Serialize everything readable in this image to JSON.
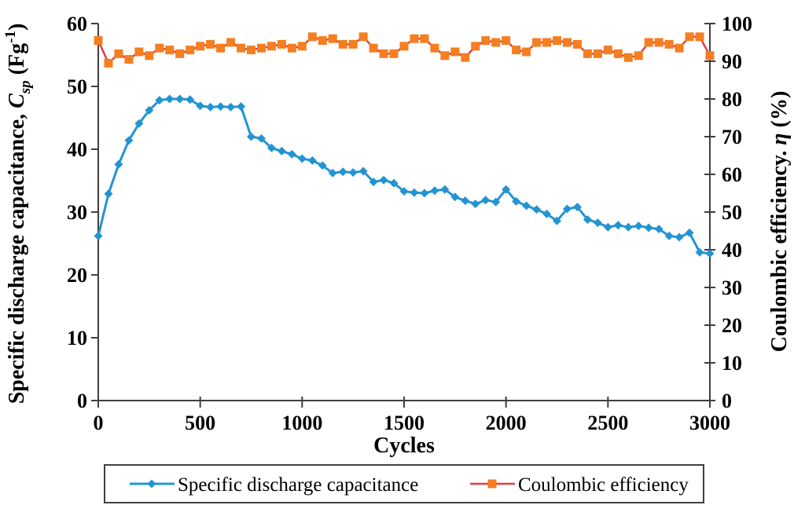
{
  "figure": {
    "background": "#ffffff",
    "axis_color": "#3f3f3f",
    "text_color": "#000000",
    "legend_border_color": "#3f3f3f"
  },
  "chart_data": {
    "type": "line",
    "title": "",
    "xlabel": "Cycles",
    "xlim": [
      0,
      3000
    ],
    "x_ticks": [
      0,
      500,
      1000,
      1500,
      2000,
      2500,
      3000
    ],
    "grid": false,
    "legend_position": "bottom-boxed",
    "left_axis": {
      "title_plain": "Specific discharge capacitance, Csp (Fg-1)",
      "title_parts": [
        {
          "t": "Specific discharge  capacitance,  "
        },
        {
          "t": "C",
          "style": "italic"
        },
        {
          "t": "sp",
          "style": "subitalic"
        },
        {
          "t": " (Fg",
          "style": "normal"
        },
        {
          "t": "-1",
          "style": "sup"
        },
        {
          "t": ")",
          "style": "normal"
        }
      ],
      "lim": [
        0,
        60
      ],
      "ticks": [
        0,
        10,
        20,
        30,
        40,
        50,
        60
      ]
    },
    "right_axis": {
      "title_plain": "Coulombic efficiency. η (%)",
      "title_parts": [
        {
          "t": "Coulombic  efficiency. "
        },
        {
          "t": "η",
          "style": "italic"
        },
        {
          "t": " (%)",
          "style": "normal"
        }
      ],
      "lim": [
        0,
        100
      ],
      "ticks": [
        0,
        10,
        20,
        30,
        40,
        50,
        60,
        70,
        80,
        90,
        100
      ]
    },
    "x": [
      0,
      50,
      100,
      150,
      200,
      250,
      300,
      350,
      400,
      450,
      500,
      550,
      600,
      650,
      700,
      750,
      800,
      850,
      900,
      950,
      1000,
      1050,
      1100,
      1150,
      1200,
      1250,
      1300,
      1350,
      1400,
      1450,
      1500,
      1550,
      1600,
      1650,
      1700,
      1750,
      1800,
      1850,
      1900,
      1950,
      2000,
      2050,
      2100,
      2150,
      2200,
      2250,
      2300,
      2350,
      2400,
      2450,
      2500,
      2550,
      2600,
      2650,
      2700,
      2750,
      2800,
      2850,
      2900,
      2950,
      3000
    ],
    "series": [
      {
        "name": "Specific discharge capacitance",
        "axis": "left",
        "marker": "diamond",
        "line_color": "#2394d2",
        "marker_color": "#2394d2",
        "values": [
          26.2,
          32.9,
          37.6,
          41.4,
          44.1,
          46.2,
          47.8,
          48.0,
          48.0,
          47.9,
          46.9,
          46.7,
          46.8,
          46.7,
          46.8,
          42.0,
          41.7,
          40.2,
          39.7,
          39.2,
          38.5,
          38.2,
          37.4,
          36.2,
          36.4,
          36.3,
          36.5,
          34.8,
          35.1,
          34.6,
          33.3,
          33.1,
          33.0,
          33.4,
          33.6,
          32.4,
          31.8,
          31.3,
          31.9,
          31.6,
          33.6,
          31.7,
          31.0,
          30.4,
          29.7,
          28.6,
          30.5,
          30.8,
          28.8,
          28.3,
          27.6,
          27.9,
          27.6,
          27.8,
          27.5,
          27.3,
          26.2,
          26.0,
          26.7,
          23.6,
          23.4
        ]
      },
      {
        "name": "Coulombic efficiency",
        "axis": "right",
        "marker": "square",
        "line_color": "#e03e3e",
        "marker_color": "#f57e21",
        "values": [
          95.5,
          89.5,
          92.0,
          90.5,
          92.5,
          91.5,
          93.5,
          93.0,
          92.0,
          93.0,
          94.0,
          94.5,
          93.5,
          95.0,
          93.5,
          93.0,
          93.5,
          94.0,
          94.5,
          93.5,
          94.0,
          96.5,
          95.5,
          96.0,
          94.5,
          94.5,
          96.5,
          93.5,
          92.0,
          92.0,
          94.0,
          96.0,
          96.0,
          93.5,
          91.5,
          92.5,
          91.0,
          94.0,
          95.5,
          95.0,
          95.5,
          93.0,
          92.5,
          95.0,
          95.0,
          95.5,
          95.0,
          94.5,
          92.0,
          92.0,
          93.0,
          92.0,
          91.0,
          91.5,
          95.0,
          95.0,
          94.5,
          93.5,
          96.5,
          96.5,
          91.5
        ]
      }
    ],
    "legend": {
      "entries": [
        "Specific discharge capacitance",
        "Coulombic efficiency"
      ]
    }
  }
}
